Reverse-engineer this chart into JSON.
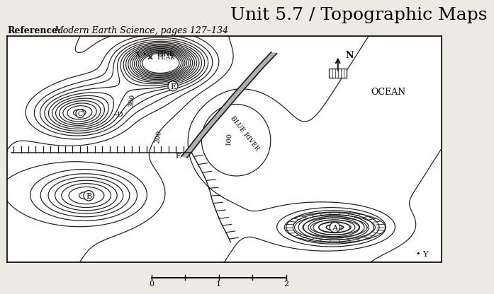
{
  "title": "Unit 5.7 / Topographic Maps",
  "reference_label": "Reference:",
  "reference_text": "Modern Earth Science, pages 127–134",
  "bg_color": "#ede9e3",
  "map_bg": "#ffffff",
  "line_color": "#1a1a1a",
  "title_fontsize": 18,
  "ref_fontsize": 9
}
